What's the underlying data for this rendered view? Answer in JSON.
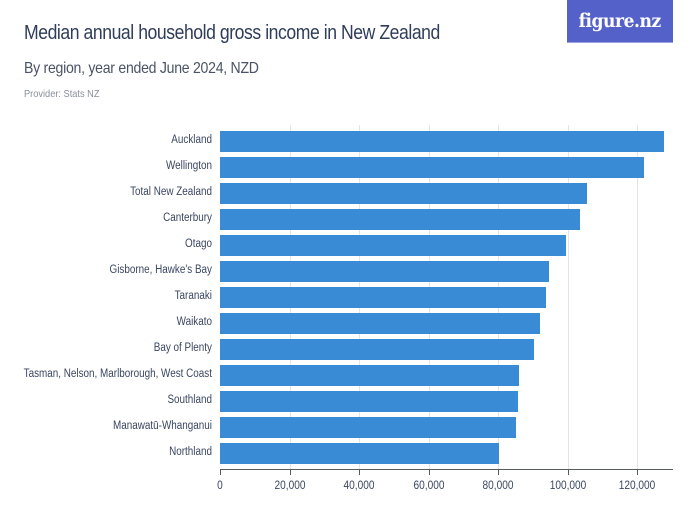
{
  "header": {
    "title": "Median annual household gross income in New Zealand",
    "subtitle": "By region, year ended June 2024, NZD",
    "provider": "Provider: Stats NZ",
    "logo": "figure.nz"
  },
  "colors": {
    "bar": "#3a8bd6",
    "logo_bg": "#5461c8",
    "title": "#2f3d5a"
  },
  "chart_data": {
    "type": "bar",
    "orientation": "horizontal",
    "title": "Median annual household gross income in New Zealand",
    "subtitle": "By region, year ended June 2024, NZD",
    "xlabel": "",
    "ylabel": "",
    "categories": [
      "Auckland",
      "Wellington",
      "Total New Zealand",
      "Canterbury",
      "Otago",
      "Gisborne, Hawke's Bay",
      "Taranaki",
      "Waikato",
      "Bay of Plenty",
      "Tasman, Nelson, Marlborough, West Coast",
      "Southland",
      "Manawatū-Whanganui",
      "Northland"
    ],
    "values": [
      127900,
      122100,
      105500,
      103700,
      99500,
      94700,
      93700,
      92200,
      90300,
      86100,
      85700,
      85300,
      80400
    ],
    "xlim": [
      0,
      130000
    ],
    "x_ticks": [
      0,
      20000,
      40000,
      60000,
      80000,
      100000,
      120000
    ],
    "x_tick_labels": [
      "0",
      "20,000",
      "40,000",
      "60,000",
      "80,000",
      "100,000",
      "120,000"
    ],
    "grid": "vertical",
    "legend": "none"
  }
}
